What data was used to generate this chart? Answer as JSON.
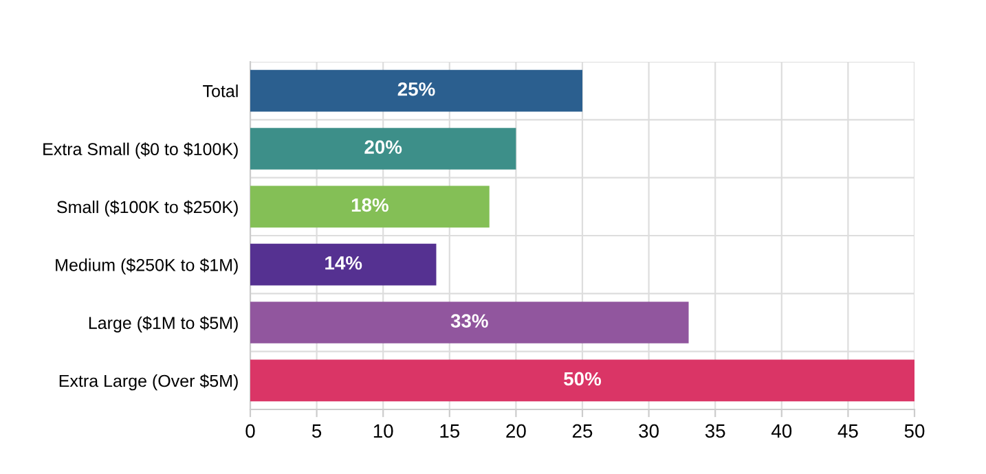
{
  "chart_data": {
    "type": "bar",
    "orientation": "horizontal",
    "categories": [
      "Total",
      "Extra Small ($0 to $100K)",
      "Small ($100K to $250K)",
      "Medium ($250K to $1M)",
      "Large ($1M to $5M)",
      "Extra Large (Over $5M)"
    ],
    "values": [
      25,
      20,
      18,
      14,
      33,
      50
    ],
    "colors": [
      "#2b5f8f",
      "#3d8f89",
      "#84bf56",
      "#553191",
      "#91569e",
      "#da3566"
    ],
    "value_labels": [
      "25%",
      "20%",
      "18%",
      "14%",
      "33%",
      "50%"
    ],
    "xlim": [
      0,
      50
    ],
    "xticks": [
      0,
      5,
      10,
      15,
      20,
      25,
      30,
      35,
      40,
      45,
      50
    ],
    "grid": true,
    "legend": false
  }
}
